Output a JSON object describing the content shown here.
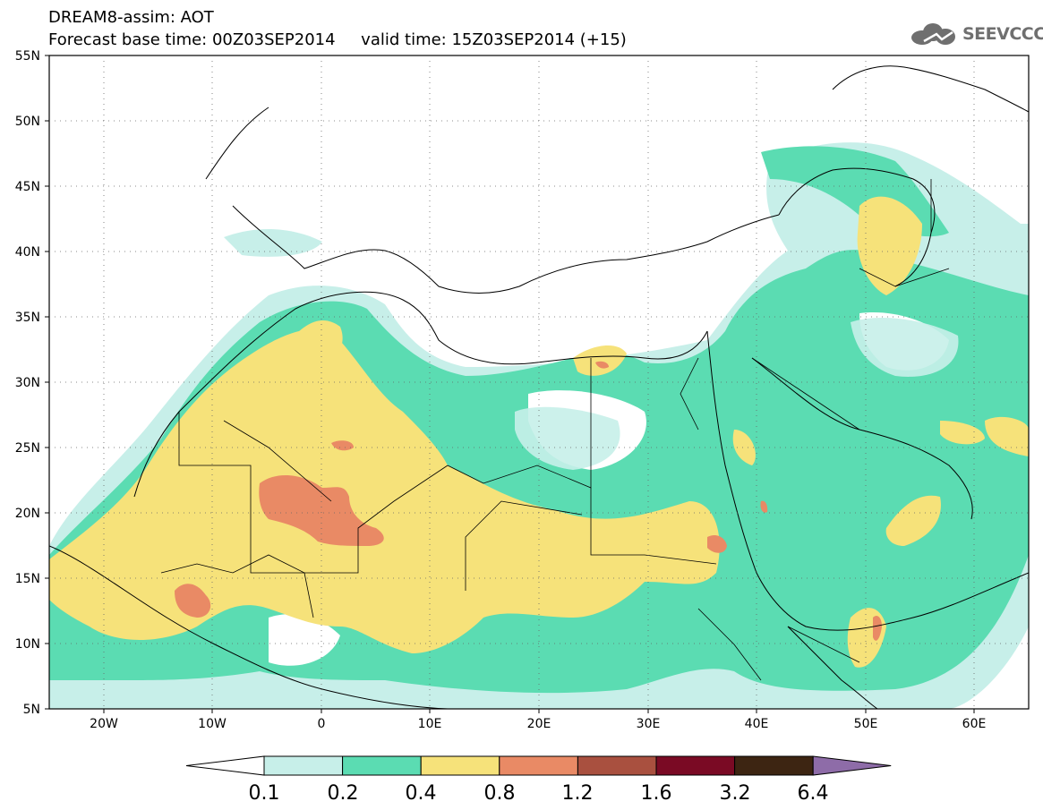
{
  "header": {
    "line1": "DREAM8-assim: AOT",
    "line2": "Forecast base time: 00Z03SEP2014     valid time: 15Z03SEP2014 (+15)"
  },
  "logo": {
    "text": "SEEVCCC",
    "icon": "cloud-icon"
  },
  "map": {
    "variable": "AOT",
    "lon_range": [
      -25,
      65
    ],
    "lat_range": [
      5,
      55
    ],
    "lat_ticks": [
      "55N",
      "50N",
      "45N",
      "40N",
      "35N",
      "30N",
      "25N",
      "20N",
      "15N",
      "10N",
      "5N"
    ],
    "lon_ticks": [
      "20W",
      "10W",
      "0",
      "10E",
      "20E",
      "30E",
      "40E",
      "50E",
      "60E"
    ]
  },
  "colorbar": {
    "labels": [
      "0.1",
      "0.2",
      "0.4",
      "0.8",
      "1.2",
      "1.6",
      "3.2",
      "6.4"
    ],
    "colors": [
      "#ffffff",
      "#c7efe9",
      "#5bdcb2",
      "#f6e27a",
      "#e98a65",
      "#a9503f",
      "#7a0a24",
      "#3d2512",
      "#8e6ca8"
    ]
  }
}
